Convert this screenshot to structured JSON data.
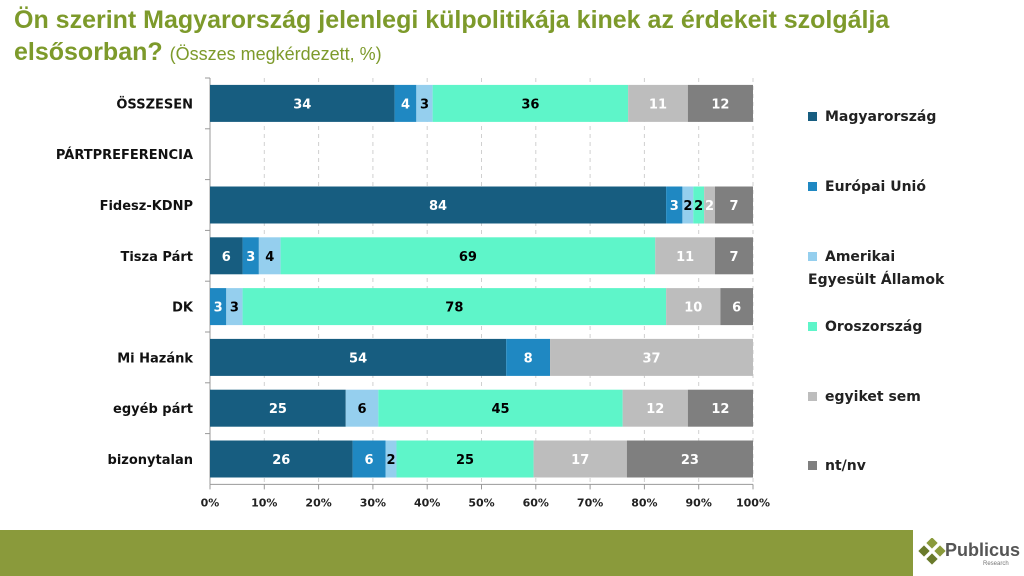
{
  "title": {
    "main": "Ön szerint Magyarország jelenlegi külpolitikája kinek az érdekeit szolgálja elsősorban?",
    "sub": "(Összes megkérdezett, %)"
  },
  "logo": {
    "name": "Publicus",
    "sub": "Research"
  },
  "chart_data": {
    "type": "bar",
    "stacked": true,
    "orientation": "horizontal",
    "title": "Ön szerint Magyarország jelenlegi külpolitikája kinek az érdekeit szolgálja elsősorban? (Összes megkérdezett, %)",
    "categories": [
      "ÖSSZESEN",
      "PÁRTPREFERENCIA",
      "Fidesz-KDNP",
      "Tisza Párt",
      "DK",
      "Mi Hazánk",
      "egyéb párt",
      "bizonytalan"
    ],
    "series": [
      {
        "name": "Magyarország",
        "color": "#175d80",
        "label_color": "#fff",
        "values": [
          34,
          null,
          84,
          6,
          0,
          54,
          25,
          26
        ]
      },
      {
        "name": "Európai Unió",
        "color": "#1f88c2",
        "label_color": "#fff",
        "values": [
          4,
          null,
          3,
          3,
          3,
          8,
          0,
          6
        ]
      },
      {
        "name": "Amerikai Egyesült Államok",
        "color": "#95cfee",
        "label_color": "#000",
        "values": [
          3,
          null,
          2,
          4,
          3,
          0,
          6,
          2
        ]
      },
      {
        "name": "Oroszország",
        "color": "#5ef5c9",
        "label_color": "#000",
        "values": [
          36,
          null,
          2,
          69,
          78,
          0,
          45,
          25
        ]
      },
      {
        "name": "egyiket sem",
        "color": "#bdbdbd",
        "label_color": "#fff",
        "values": [
          11,
          null,
          2,
          11,
          10,
          37,
          12,
          17
        ]
      },
      {
        "name": "nt/nv",
        "color": "#7f7f7f",
        "label_color": "#fff",
        "values": [
          12,
          null,
          7,
          7,
          6,
          0,
          12,
          23
        ]
      }
    ],
    "xticks": [
      "0%",
      "10%",
      "20%",
      "30%",
      "40%",
      "50%",
      "60%",
      "70%",
      "80%",
      "90%",
      "100%"
    ],
    "xlim": [
      0,
      100
    ],
    "grid": "vertical dashed",
    "legend": "right"
  }
}
